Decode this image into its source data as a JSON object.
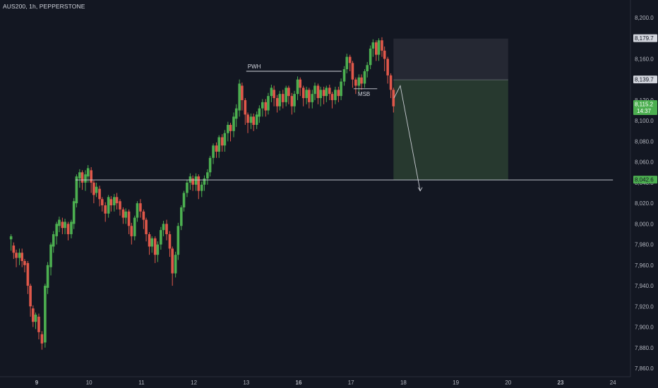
{
  "header": {
    "symbol_label": "AUS200, 1h, PEPPERSTONE"
  },
  "colors": {
    "background": "#131722",
    "grid": "#1e222d",
    "up": "#26a69a",
    "down": "#ef5350",
    "up_candle": "#4caf50",
    "down_candle": "#e0584a",
    "text": "#d1d4dc",
    "axis_text": "#b2b5be",
    "stop_zone": "#252833",
    "target_zone": "#27392f",
    "current_price_bg": "#4caf50",
    "label_bg": "#4a4e5a",
    "line": "#d1d4dc"
  },
  "chart_data": {
    "type": "candlestick",
    "title": "",
    "xlabel": "",
    "ylabel": "",
    "ylim": [
      7855,
      8215
    ],
    "xlim": [
      8.49,
      24.2
    ],
    "y_ticks": [
      "8,200.0",
      "8,160.0",
      "8,120.0",
      "8,100.0",
      "8,080.0",
      "8,060.0",
      "8,040.0",
      "8,020.0",
      "8,000.0",
      "7,980.0",
      "7,960.0",
      "7,940.0",
      "7,920.0",
      "7,900.0",
      "7,880.0",
      "7,860.0"
    ],
    "y_tick_values": [
      8200,
      8160,
      8120,
      8100,
      8080,
      8060,
      8040,
      8020,
      8000,
      7980,
      7960,
      7940,
      7920,
      7900,
      7880,
      7860
    ],
    "x_ticks": [
      {
        "label": "9",
        "value": 9,
        "bold": true
      },
      {
        "label": "10",
        "value": 10,
        "bold": false
      },
      {
        "label": "11",
        "value": 11,
        "bold": false
      },
      {
        "label": "12",
        "value": 12,
        "bold": false
      },
      {
        "label": "13",
        "value": 13,
        "bold": false
      },
      {
        "label": "16",
        "value": 14,
        "bold": true
      },
      {
        "label": "17",
        "value": 15,
        "bold": false
      },
      {
        "label": "18",
        "value": 16,
        "bold": false
      },
      {
        "label": "19",
        "value": 17,
        "bold": false
      },
      {
        "label": "20",
        "value": 18,
        "bold": false
      },
      {
        "label": "23",
        "value": 19,
        "bold": true
      },
      {
        "label": "24",
        "value": 20,
        "bold": false
      }
    ],
    "candles": [
      [
        8.51,
        7985,
        7988,
        7975,
        7990,
        7974
      ],
      [
        8.56,
        7979,
        7972,
        7968,
        7982,
        7966
      ],
      [
        8.61,
        7972,
        7967,
        7960,
        7975,
        7958
      ],
      [
        8.67,
        7967,
        7972,
        7964,
        7976,
        7960
      ],
      [
        8.72,
        7972,
        7964,
        7960,
        7976,
        7958
      ],
      [
        8.77,
        7964,
        7960,
        7956,
        7966,
        7953
      ],
      [
        8.83,
        7962,
        7940,
        7935,
        7964,
        7932
      ],
      [
        8.88,
        7940,
        7920,
        7914,
        7942,
        7910
      ],
      [
        8.93,
        7918,
        7905,
        7902,
        7921,
        7900
      ],
      [
        8.98,
        7905,
        7912,
        7903,
        7914,
        7898
      ],
      [
        9.04,
        7910,
        7895,
        7892,
        7913,
        7888
      ],
      [
        9.1,
        7893,
        7884,
        7880,
        7896,
        7878
      ],
      [
        9.16,
        7885,
        7940,
        7882,
        7942,
        7880
      ],
      [
        9.21,
        7938,
        7960,
        7935,
        7963,
        7932
      ],
      [
        9.27,
        7958,
        7980,
        7955,
        7982,
        7950
      ],
      [
        9.32,
        7978,
        7990,
        7975,
        7993,
        7972
      ],
      [
        9.38,
        7988,
        8000,
        7984,
        8002,
        7980
      ],
      [
        9.43,
        7998,
        8004,
        7995,
        8007,
        7992
      ],
      [
        9.49,
        8002,
        7996,
        7993,
        8006,
        7990
      ],
      [
        9.54,
        7996,
        8002,
        7992,
        8005,
        7990
      ],
      [
        9.6,
        8000,
        7990,
        7986,
        8002,
        7984
      ],
      [
        9.66,
        7990,
        8002,
        7988,
        8004,
        7986
      ],
      [
        9.71,
        8000,
        8022,
        7998,
        8025,
        7995
      ],
      [
        9.76,
        8020,
        8046,
        8018,
        8048,
        8016
      ],
      [
        9.82,
        8044,
        8050,
        8038,
        8053,
        8035
      ],
      [
        9.87,
        8050,
        8040,
        8036,
        8052,
        8033
      ],
      [
        9.93,
        8040,
        8048,
        8034,
        8052,
        8032
      ],
      [
        9.98,
        8046,
        8054,
        8042,
        8057,
        8040
      ],
      [
        10.04,
        8052,
        8040,
        8034,
        8055,
        8030
      ],
      [
        10.09,
        8040,
        8028,
        8024,
        8042,
        8020
      ],
      [
        10.14,
        8030,
        8036,
        8028,
        8040,
        8026
      ],
      [
        10.2,
        8034,
        8024,
        8020,
        8037,
        8017
      ],
      [
        10.25,
        8024,
        8018,
        8014,
        8026,
        8012
      ],
      [
        10.31,
        8018,
        8010,
        8005,
        8021,
        8002
      ],
      [
        10.37,
        8010,
        8026,
        8008,
        8028,
        8006
      ],
      [
        10.42,
        8024,
        8018,
        8014,
        8027,
        8012
      ],
      [
        10.48,
        8018,
        8026,
        8014,
        8029,
        8012
      ],
      [
        10.53,
        8026,
        8020,
        8016,
        8030,
        8014
      ],
      [
        10.59,
        8022,
        8014,
        8010,
        8024,
        8008
      ],
      [
        10.65,
        8014,
        8006,
        8002,
        8016,
        8000
      ],
      [
        10.7,
        8006,
        8012,
        8002,
        8015,
        8000
      ],
      [
        10.76,
        8012,
        7998,
        7994,
        8014,
        7990
      ],
      [
        10.81,
        7998,
        7988,
        7984,
        8001,
        7980
      ],
      [
        10.87,
        7988,
        8006,
        7986,
        8008,
        7984
      ],
      [
        10.92,
        8006,
        8020,
        8004,
        8022,
        8002
      ],
      [
        10.98,
        8020,
        8012,
        8010,
        8024,
        8006
      ],
      [
        11.04,
        8012,
        8004,
        7998,
        8014,
        7995
      ],
      [
        11.09,
        8004,
        7990,
        7986,
        8006,
        7983
      ],
      [
        11.15,
        7990,
        7978,
        7974,
        7992,
        7970
      ],
      [
        11.2,
        7978,
        7986,
        7976,
        7988,
        7972
      ],
      [
        11.26,
        7986,
        7970,
        7966,
        7988,
        7962
      ],
      [
        11.31,
        7970,
        7980,
        7966,
        7983,
        7963
      ],
      [
        11.37,
        7980,
        7994,
        7978,
        7997,
        7975
      ],
      [
        11.42,
        7994,
        8000,
        7990,
        8003,
        7988
      ],
      [
        11.48,
        8000,
        7990,
        7986,
        8004,
        7984
      ],
      [
        11.54,
        7990,
        7976,
        7972,
        7993,
        7968
      ],
      [
        11.59,
        7976,
        7952,
        7946,
        7978,
        7940
      ],
      [
        11.65,
        7952,
        7970,
        7950,
        7973,
        7948
      ],
      [
        11.7,
        7970,
        7998,
        7968,
        8001,
        7965
      ],
      [
        11.76,
        7998,
        8016,
        7996,
        8018,
        7994
      ],
      [
        11.81,
        8016,
        8030,
        8014,
        8032,
        8012
      ],
      [
        11.87,
        8030,
        8040,
        8028,
        8043,
        8026
      ],
      [
        11.93,
        8040,
        8046,
        8036,
        8049,
        8033
      ],
      [
        11.98,
        8044,
        8038,
        8036,
        8047,
        8032
      ],
      [
        12.04,
        8038,
        8046,
        8034,
        8049,
        8032
      ],
      [
        12.09,
        8046,
        8032,
        8028,
        8048,
        8024
      ],
      [
        12.15,
        8032,
        8038,
        8028,
        8041,
        8026
      ],
      [
        12.2,
        8038,
        8044,
        8034,
        8047,
        8032
      ],
      [
        12.26,
        8044,
        8050,
        8040,
        8053,
        8038
      ],
      [
        12.31,
        8050,
        8064,
        8048,
        8066,
        8046
      ],
      [
        12.37,
        8064,
        8076,
        8062,
        8078,
        8058
      ],
      [
        12.43,
        8076,
        8070,
        8066,
        8079,
        8064
      ],
      [
        12.48,
        8070,
        8084,
        8068,
        8086,
        8064
      ],
      [
        12.54,
        8084,
        8076,
        8072,
        8087,
        8070
      ],
      [
        12.59,
        8076,
        8088,
        8074,
        8091,
        8070
      ],
      [
        12.65,
        8088,
        8096,
        8084,
        8099,
        8080
      ],
      [
        12.7,
        8096,
        8090,
        8084,
        8098,
        8080
      ],
      [
        12.76,
        8090,
        8104,
        8086,
        8108,
        8084
      ],
      [
        12.81,
        8102,
        8112,
        8098,
        8116,
        8094
      ],
      [
        12.87,
        8110,
        8136,
        8106,
        8140,
        8104
      ],
      [
        12.92,
        8134,
        8120,
        8114,
        8137,
        8110
      ],
      [
        12.98,
        8120,
        8106,
        8100,
        8122,
        8096
      ],
      [
        13.03,
        8106,
        8098,
        8092,
        8108,
        8088
      ],
      [
        13.09,
        8098,
        8104,
        8094,
        8107,
        8092
      ],
      [
        13.14,
        8104,
        8096,
        8092,
        8107,
        8090
      ],
      [
        13.2,
        8096,
        8106,
        8094,
        8109,
        8092
      ],
      [
        13.25,
        8104,
        8112,
        8100,
        8115,
        8098
      ],
      [
        13.31,
        8112,
        8118,
        8108,
        8121,
        8104
      ],
      [
        13.37,
        8118,
        8110,
        8106,
        8121,
        8104
      ],
      [
        13.42,
        8110,
        8124,
        8108,
        8127,
        8106
      ],
      [
        13.48,
        8124,
        8132,
        8120,
        8135,
        8118
      ],
      [
        13.53,
        8130,
        8122,
        8118,
        8134,
        8114
      ],
      [
        13.59,
        8122,
        8114,
        8110,
        8125,
        8108
      ],
      [
        13.64,
        8114,
        8126,
        8112,
        8129,
        8110
      ],
      [
        13.7,
        8126,
        8118,
        8114,
        8130,
        8112
      ],
      [
        13.76,
        8118,
        8132,
        8116,
        8134,
        8114
      ],
      [
        13.81,
        8132,
        8124,
        8118,
        8134,
        8116
      ],
      [
        13.87,
        8124,
        8114,
        8110,
        8127,
        8106
      ],
      [
        13.92,
        8114,
        8126,
        8110,
        8129,
        8108
      ],
      [
        13.98,
        8126,
        8140,
        8122,
        8143,
        8120
      ],
      [
        14.03,
        8140,
        8132,
        8126,
        8142,
        8124
      ],
      [
        14.09,
        8132,
        8122,
        8118,
        8134,
        8114
      ],
      [
        14.15,
        8122,
        8130,
        8118,
        8133,
        8116
      ],
      [
        14.2,
        8130,
        8118,
        8114,
        8132,
        8112
      ],
      [
        14.26,
        8118,
        8126,
        8114,
        8130,
        8112
      ],
      [
        14.31,
        8126,
        8134,
        8122,
        8137,
        8120
      ],
      [
        14.37,
        8134,
        8122,
        8118,
        8136,
        8116
      ],
      [
        14.42,
        8122,
        8130,
        8118,
        8133,
        8114
      ],
      [
        14.48,
        8130,
        8124,
        8120,
        8133,
        8116
      ],
      [
        14.53,
        8124,
        8132,
        8120,
        8134,
        8118
      ],
      [
        14.59,
        8132,
        8126,
        8122,
        8135,
        8120
      ],
      [
        14.64,
        8126,
        8120,
        8116,
        8128,
        8112
      ],
      [
        14.7,
        8120,
        8130,
        8118,
        8133,
        8116
      ],
      [
        14.76,
        8130,
        8124,
        8120,
        8133,
        8118
      ],
      [
        14.81,
        8124,
        8138,
        8122,
        8141,
        8120
      ],
      [
        14.87,
        8138,
        8150,
        8136,
        8153,
        8134
      ],
      [
        14.92,
        8150,
        8162,
        8148,
        8165,
        8146
      ],
      [
        14.98,
        8162,
        8156,
        8150,
        8164,
        8148
      ],
      [
        15.03,
        8156,
        8140,
        8136,
        8158,
        8132
      ],
      [
        15.09,
        8140,
        8134,
        8128,
        8142,
        8126
      ],
      [
        15.15,
        8134,
        8142,
        8130,
        8145,
        8128
      ],
      [
        15.2,
        8142,
        8136,
        8132,
        8145,
        8130
      ],
      [
        15.26,
        8136,
        8148,
        8134,
        8150,
        8132
      ],
      [
        15.31,
        8148,
        8154,
        8144,
        8157,
        8142
      ],
      [
        15.37,
        8154,
        8170,
        8152,
        8173,
        8150
      ],
      [
        15.42,
        8170,
        8176,
        8166,
        8179,
        8162
      ],
      [
        15.48,
        8176,
        8164,
        8160,
        8178,
        8158
      ],
      [
        15.53,
        8164,
        8178,
        8160,
        8180,
        8158
      ],
      [
        15.59,
        8178,
        8168,
        8164,
        8181,
        8162
      ],
      [
        15.64,
        8168,
        8160,
        8150,
        8172,
        8148
      ],
      [
        15.7,
        8160,
        8144,
        8140,
        8162,
        8136
      ],
      [
        15.76,
        8144,
        8130,
        8126,
        8146,
        8122
      ],
      [
        15.81,
        8130,
        8114,
        8112,
        8132,
        8108
      ]
    ],
    "annotations": [
      {
        "text": "PWH",
        "x1": 13.0,
        "x2": 14.82,
        "price": 8148
      },
      {
        "text": "MSB",
        "x1": 15.05,
        "x2": 15.5,
        "price": 8131
      }
    ],
    "horizontal_line": {
      "price": 8042.6,
      "x1": 9.74,
      "x2": 20.0
    },
    "position": {
      "x1": 15.81,
      "x2": 18.0,
      "stop": 8179.7,
      "entry": 8139.7,
      "target": 8042.6
    },
    "projection": [
      [
        15.82,
        8122
      ],
      [
        15.94,
        8134
      ],
      [
        16.32,
        8032
      ]
    ],
    "price_labels": {
      "stop": "8,179.7",
      "entry": "8,139.7",
      "target": "8,042.6",
      "current": "8,115.2",
      "countdown": "14:37"
    },
    "current_price": 8115.2
  }
}
